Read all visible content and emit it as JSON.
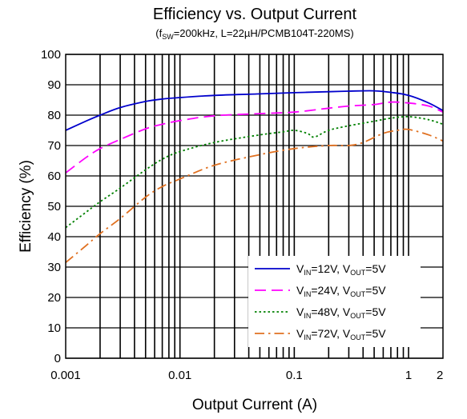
{
  "chart_data": {
    "type": "line",
    "title": "Efficiency vs. Output Current",
    "subtitle": {
      "prefix": "(f",
      "sub": "SW",
      "rest": "=200kHz, L=22µH/PCMB104T-220MS)"
    },
    "xlabel": "Output Current (A)",
    "ylabel": "Efficiency (%)",
    "x_scale": "log",
    "xlim": [
      0.001,
      2
    ],
    "ylim": [
      0,
      100
    ],
    "x_ticks": [
      {
        "value": 0.001,
        "label": "0.001"
      },
      {
        "value": 0.01,
        "label": "0.01"
      },
      {
        "value": 0.1,
        "label": "0.1"
      },
      {
        "value": 1,
        "label": "1"
      },
      {
        "value": 2,
        "label": "2"
      }
    ],
    "y_ticks": [
      {
        "value": 0,
        "label": "0"
      },
      {
        "value": 10,
        "label": "10"
      },
      {
        "value": 20,
        "label": "20"
      },
      {
        "value": 30,
        "label": "30"
      },
      {
        "value": 40,
        "label": "40"
      },
      {
        "value": 50,
        "label": "50"
      },
      {
        "value": 60,
        "label": "60"
      },
      {
        "value": 70,
        "label": "70"
      },
      {
        "value": 80,
        "label": "80"
      },
      {
        "value": 90,
        "label": "90"
      },
      {
        "value": 100,
        "label": "100"
      }
    ],
    "grid": true,
    "legend_position": "bottom-right",
    "series": [
      {
        "name": "VIN=12V, VOUT=5V",
        "legend": {
          "v1": "V",
          "s1": "IN",
          "m": "=12V, V",
          "s2": "OUT",
          "e": "=5V"
        },
        "color": "#0000cc",
        "dash": "solid",
        "points": [
          [
            0.001,
            75
          ],
          [
            0.0015,
            78
          ],
          [
            0.002,
            80
          ],
          [
            0.003,
            82.5
          ],
          [
            0.005,
            84.5
          ],
          [
            0.007,
            85.3
          ],
          [
            0.01,
            85.8
          ],
          [
            0.02,
            86.5
          ],
          [
            0.05,
            87
          ],
          [
            0.1,
            87.4
          ],
          [
            0.2,
            87.7
          ],
          [
            0.3,
            87.9
          ],
          [
            0.5,
            88
          ],
          [
            0.7,
            87.5
          ],
          [
            1,
            86.5
          ],
          [
            1.5,
            84
          ],
          [
            2,
            81.5
          ]
        ]
      },
      {
        "name": "VIN=24V, VOUT=5V",
        "legend": {
          "v1": "V",
          "s1": "IN",
          "m": "=24V, V",
          "s2": "OUT",
          "e": "=5V"
        },
        "color": "#ff00ff",
        "dash": "long-dash",
        "points": [
          [
            0.001,
            61
          ],
          [
            0.0015,
            66
          ],
          [
            0.002,
            69
          ],
          [
            0.003,
            72
          ],
          [
            0.005,
            75.5
          ],
          [
            0.007,
            77
          ],
          [
            0.01,
            78.2
          ],
          [
            0.02,
            79.8
          ],
          [
            0.05,
            80.5
          ],
          [
            0.1,
            81
          ],
          [
            0.2,
            82.3
          ],
          [
            0.3,
            83
          ],
          [
            0.5,
            83.5
          ],
          [
            0.7,
            84.3
          ],
          [
            1,
            84
          ],
          [
            1.5,
            83
          ],
          [
            2,
            81
          ]
        ]
      },
      {
        "name": "VIN=48V, VOUT=5V",
        "legend": {
          "v1": "V",
          "s1": "IN",
          "m": "=48V, V",
          "s2": "OUT",
          "e": "=5V"
        },
        "color": "#008000",
        "dash": "dotted",
        "points": [
          [
            0.001,
            43
          ],
          [
            0.0015,
            48
          ],
          [
            0.002,
            51.5
          ],
          [
            0.003,
            56
          ],
          [
            0.005,
            62
          ],
          [
            0.007,
            65.5
          ],
          [
            0.01,
            68
          ],
          [
            0.02,
            71
          ],
          [
            0.05,
            73.5
          ],
          [
            0.08,
            74.5
          ],
          [
            0.1,
            75
          ],
          [
            0.13,
            74
          ],
          [
            0.15,
            72.8
          ],
          [
            0.2,
            75
          ],
          [
            0.3,
            76.5
          ],
          [
            0.5,
            78
          ],
          [
            0.7,
            79
          ],
          [
            1,
            79.5
          ],
          [
            1.5,
            78.5
          ],
          [
            2,
            77
          ]
        ]
      },
      {
        "name": "VIN=72V, VOUT=5V",
        "legend": {
          "v1": "V",
          "s1": "IN",
          "m": "=72V, V",
          "s2": "OUT",
          "e": "=5V"
        },
        "color": "#e07020",
        "dash": "dash-dot",
        "points": [
          [
            0.001,
            31.5
          ],
          [
            0.0015,
            37
          ],
          [
            0.002,
            41
          ],
          [
            0.003,
            46
          ],
          [
            0.005,
            53
          ],
          [
            0.007,
            56.5
          ],
          [
            0.01,
            59
          ],
          [
            0.02,
            63.5
          ],
          [
            0.05,
            67
          ],
          [
            0.1,
            69
          ],
          [
            0.2,
            70
          ],
          [
            0.3,
            70
          ],
          [
            0.4,
            71
          ],
          [
            0.6,
            74
          ],
          [
            0.8,
            75
          ],
          [
            1,
            75.3
          ],
          [
            1.5,
            73.5
          ],
          [
            2,
            71.5
          ]
        ]
      }
    ]
  }
}
